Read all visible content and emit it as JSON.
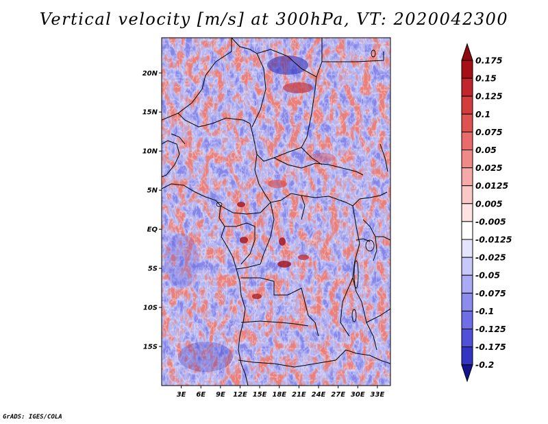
{
  "title": "Vertical velocity [m/s] at 300hPa, VT: 2020042300",
  "credit": "GrADS: IGES/COLA",
  "map": {
    "lat_range": [
      -20,
      24.5
    ],
    "lon_range": [
      0,
      35
    ],
    "lat_ticks": [
      {
        "value": 20,
        "label": "20N"
      },
      {
        "value": 15,
        "label": "15N"
      },
      {
        "value": 10,
        "label": "10N"
      },
      {
        "value": 5,
        "label": "5N"
      },
      {
        "value": 0,
        "label": "EQ"
      },
      {
        "value": -5,
        "label": "5S"
      },
      {
        "value": -10,
        "label": "10S"
      },
      {
        "value": -15,
        "label": "15S"
      }
    ],
    "lon_ticks": [
      {
        "value": 3,
        "label": "3E"
      },
      {
        "value": 6,
        "label": "6E"
      },
      {
        "value": 9,
        "label": "9E"
      },
      {
        "value": 12,
        "label": "12E"
      },
      {
        "value": 15,
        "label": "15E"
      },
      {
        "value": 18,
        "label": "18E"
      },
      {
        "value": 21,
        "label": "21E"
      },
      {
        "value": 24,
        "label": "24E"
      },
      {
        "value": 27,
        "label": "27E"
      },
      {
        "value": 30,
        "label": "30E"
      },
      {
        "value": 33,
        "label": "33E"
      }
    ]
  },
  "colorbar": {
    "levels": [
      {
        "label": "0.175",
        "color": "#a50f15"
      },
      {
        "label": "0.15",
        "color": "#c0262b"
      },
      {
        "label": "0.125",
        "color": "#d33c3c"
      },
      {
        "label": "0.1",
        "color": "#e05252"
      },
      {
        "label": "0.075",
        "color": "#ea6c6a"
      },
      {
        "label": "0.05",
        "color": "#f08a87"
      },
      {
        "label": "0.025",
        "color": "#f6a9a6"
      },
      {
        "label": "0.0125",
        "color": "#fac8c5"
      },
      {
        "label": "0.005",
        "color": "#fde4e2"
      },
      {
        "label": "-0.005",
        "color": "#ffffff"
      },
      {
        "label": "-0.0125",
        "color": "#e4e4fd"
      },
      {
        "label": "-0.025",
        "color": "#c8c8fa"
      },
      {
        "label": "-0.05",
        "color": "#aaaaf5"
      },
      {
        "label": "-0.075",
        "color": "#8c8cee"
      },
      {
        "label": "-0.1",
        "color": "#6e6ee6"
      },
      {
        "label": "-0.125",
        "color": "#5050d8"
      },
      {
        "label": "-0.175",
        "color": "#3434c4"
      },
      {
        "label": "-0.2",
        "color": "#1c1ca8"
      }
    ],
    "top_color": "#8e0a10",
    "bottom_color": "#14148f"
  }
}
